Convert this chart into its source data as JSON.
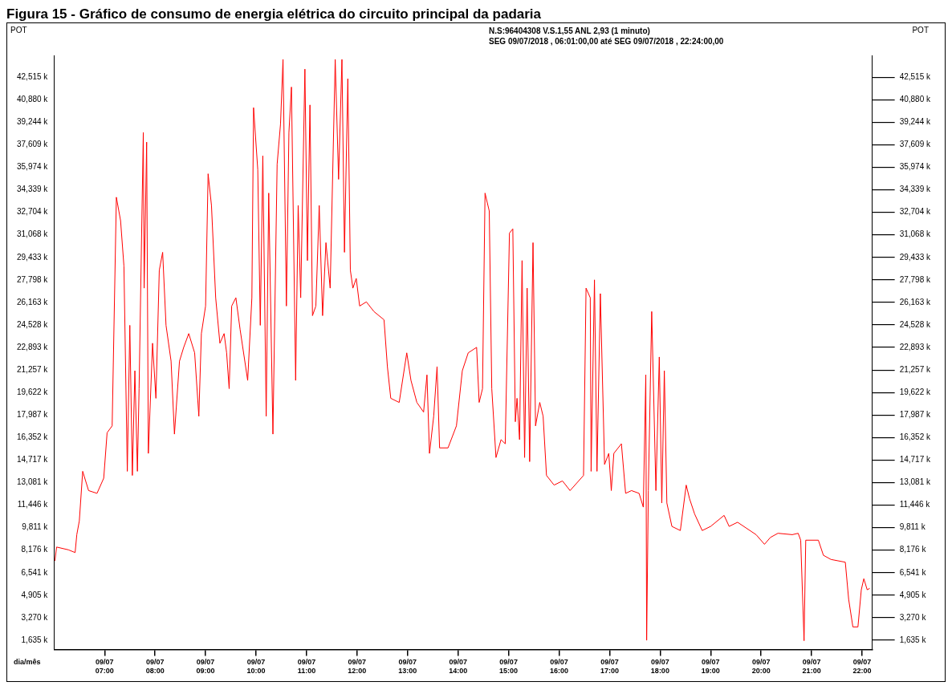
{
  "chart_data": {
    "type": "line",
    "title": "Figura 15 - Gráfico de consumo de energia elétrica do circuito principal da padaria",
    "subtitle": "N.S:96404308  V.S.1,55 ANL 2,93 (1 minuto)",
    "annotations": [
      "SEG 09/07/2018 , 06:01:00,00 até SEG 09/07/2018 , 22:24:00,00"
    ],
    "xlabel": "dia/mês",
    "ylabel": "POT",
    "y2label": "POT",
    "xlim": [
      "2018-07-09T06:00",
      "2018-07-09T22:12"
    ],
    "xticks": [
      {
        "value": "2018-07-09T07:00",
        "label": "09/07 07:00"
      },
      {
        "value": "2018-07-09T08:00",
        "label": "09/07 08:00"
      },
      {
        "value": "2018-07-09T09:00",
        "label": "09/07 09:00"
      },
      {
        "value": "2018-07-09T10:00",
        "label": "09/07 10:00"
      },
      {
        "value": "2018-07-09T11:00",
        "label": "09/07 11:00"
      },
      {
        "value": "2018-07-09T12:00",
        "label": "09/07 12:00"
      },
      {
        "value": "2018-07-09T13:00",
        "label": "09/07 13:00"
      },
      {
        "value": "2018-07-09T14:00",
        "label": "09/07 14:00"
      },
      {
        "value": "2018-07-09T15:00",
        "label": "09/07 15:00"
      },
      {
        "value": "2018-07-09T16:00",
        "label": "09/07 16:00"
      },
      {
        "value": "2018-07-09T17:00",
        "label": "09/07 17:00"
      },
      {
        "value": "2018-07-09T18:00",
        "label": "09/07 18:00"
      },
      {
        "value": "2018-07-09T19:00",
        "label": "09/07 19:00"
      },
      {
        "value": "2018-07-09T20:00",
        "label": "09/07 20:00"
      },
      {
        "value": "2018-07-09T21:00",
        "label": "09/07 21:00"
      },
      {
        "value": "2018-07-09T22:00",
        "label": "09/07 22:00"
      }
    ],
    "ylim": [
      0.97,
      44.1
    ],
    "yticks": [
      {
        "value": 1.635,
        "label": "1,635 k"
      },
      {
        "value": 3.27,
        "label": "3,270 k"
      },
      {
        "value": 4.905,
        "label": "4,905 k"
      },
      {
        "value": 6.541,
        "label": "6,541 k"
      },
      {
        "value": 8.176,
        "label": "8,176 k"
      },
      {
        "value": 9.811,
        "label": "9,811 k"
      },
      {
        "value": 11.446,
        "label": "11,446 k"
      },
      {
        "value": 13.081,
        "label": "13,081 k"
      },
      {
        "value": 14.717,
        "label": "14,717 k"
      },
      {
        "value": 16.352,
        "label": "16,352 k"
      },
      {
        "value": 17.987,
        "label": "17,987 k"
      },
      {
        "value": 19.622,
        "label": "19,622 k"
      },
      {
        "value": 21.257,
        "label": "21,257 k"
      },
      {
        "value": 22.893,
        "label": "22,893 k"
      },
      {
        "value": 24.528,
        "label": "24,528 k"
      },
      {
        "value": 26.163,
        "label": "26,163 k"
      },
      {
        "value": 27.798,
        "label": "27,798 k"
      },
      {
        "value": 29.433,
        "label": "29,433 k"
      },
      {
        "value": 31.068,
        "label": "31,068 k"
      },
      {
        "value": 32.704,
        "label": "32,704 k"
      },
      {
        "value": 34.339,
        "label": "34,339 k"
      },
      {
        "value": 35.974,
        "label": "35,974 k"
      },
      {
        "value": 37.609,
        "label": "37,609 k"
      },
      {
        "value": 39.244,
        "label": "39,244 k"
      },
      {
        "value": 40.88,
        "label": "40,880 k"
      },
      {
        "value": 42.515,
        "label": "42,515 k"
      }
    ],
    "y2lim": [
      0.97,
      44.1
    ],
    "y2ticks": [
      {
        "value": 1.635,
        "label": "1,635 k"
      },
      {
        "value": 3.27,
        "label": "3,270 k"
      },
      {
        "value": 4.905,
        "label": "4,905 k"
      },
      {
        "value": 6.541,
        "label": "6,541 k"
      },
      {
        "value": 8.176,
        "label": "8,176 k"
      },
      {
        "value": 9.811,
        "label": "9,811 k"
      },
      {
        "value": 11.446,
        "label": "11,446 k"
      },
      {
        "value": 13.081,
        "label": "13,081 k"
      },
      {
        "value": 14.717,
        "label": "14,717 k"
      },
      {
        "value": 16.352,
        "label": "16,352 k"
      },
      {
        "value": 17.987,
        "label": "17,987 k"
      },
      {
        "value": 19.622,
        "label": "19,622 k"
      },
      {
        "value": 21.257,
        "label": "21,257 k"
      },
      {
        "value": 22.893,
        "label": "22,893 k"
      },
      {
        "value": 24.528,
        "label": "24,528 k"
      },
      {
        "value": 26.163,
        "label": "26,163 k"
      },
      {
        "value": 27.798,
        "label": "27,798 k"
      },
      {
        "value": 29.433,
        "label": "29,433 k"
      },
      {
        "value": 31.068,
        "label": "31,068 k"
      },
      {
        "value": 32.704,
        "label": "32,704 k"
      },
      {
        "value": 34.339,
        "label": "34,339 k"
      },
      {
        "value": 35.974,
        "label": "35,974 k"
      },
      {
        "value": 37.609,
        "label": "37,609 k"
      },
      {
        "value": 39.244,
        "label": "39,244 k"
      },
      {
        "value": 40.88,
        "label": "40,880 k"
      },
      {
        "value": 42.515,
        "label": "42,515 k"
      }
    ],
    "grid": false,
    "legend": false,
    "marker": "none",
    "line_style": "solid",
    "series": [
      {
        "color": "#ff0000",
        "x": [
          "2018-07-09T06:01",
          "2018-07-09T06:03",
          "2018-07-09T06:17",
          "2018-07-09T06:25",
          "2018-07-09T06:27",
          "2018-07-09T06:30",
          "2018-07-09T06:34",
          "2018-07-09T06:41",
          "2018-07-09T06:51",
          "2018-07-09T06:59",
          "2018-07-09T07:03",
          "2018-07-09T07:09",
          "2018-07-09T07:14",
          "2018-07-09T07:19",
          "2018-07-09T07:23",
          "2018-07-09T07:27",
          "2018-07-09T07:30",
          "2018-07-09T07:33",
          "2018-07-09T07:36",
          "2018-07-09T07:39",
          "2018-07-09T07:41",
          "2018-07-09T07:46",
          "2018-07-09T07:47",
          "2018-07-09T07:50",
          "2018-07-09T07:52",
          "2018-07-09T07:57",
          "2018-07-09T08:01",
          "2018-07-09T08:05",
          "2018-07-09T08:09",
          "2018-07-09T08:13",
          "2018-07-09T08:19",
          "2018-07-09T08:23",
          "2018-07-09T08:29",
          "2018-07-09T08:34",
          "2018-07-09T08:40",
          "2018-07-09T08:47",
          "2018-07-09T08:52",
          "2018-07-09T08:55",
          "2018-07-09T09:00",
          "2018-07-09T09:03",
          "2018-07-09T09:07",
          "2018-07-09T09:12",
          "2018-07-09T09:17",
          "2018-07-09T09:22",
          "2018-07-09T09:25",
          "2018-07-09T09:28",
          "2018-07-09T09:31",
          "2018-07-09T09:36",
          "2018-07-09T09:41",
          "2018-07-09T09:50",
          "2018-07-09T09:55",
          "2018-07-09T09:57",
          "2018-07-09T10:02",
          "2018-07-09T10:05",
          "2018-07-09T10:08",
          "2018-07-09T10:12",
          "2018-07-09T10:15",
          "2018-07-09T10:20",
          "2018-07-09T10:25",
          "2018-07-09T10:29",
          "2018-07-09T10:32",
          "2018-07-09T10:36",
          "2018-07-09T10:39",
          "2018-07-09T10:42",
          "2018-07-09T10:47",
          "2018-07-09T10:50",
          "2018-07-09T10:53",
          "2018-07-09T10:58",
          "2018-07-09T11:01",
          "2018-07-09T11:04",
          "2018-07-09T11:07",
          "2018-07-09T11:11",
          "2018-07-09T11:15",
          "2018-07-09T11:19",
          "2018-07-09T11:23",
          "2018-07-09T11:28",
          "2018-07-09T11:34",
          "2018-07-09T11:38",
          "2018-07-09T11:42",
          "2018-07-09T11:45",
          "2018-07-09T11:49",
          "2018-07-09T11:52",
          "2018-07-09T11:55",
          "2018-07-09T11:59",
          "2018-07-09T12:03",
          "2018-07-09T12:11",
          "2018-07-09T12:20",
          "2018-07-09T12:32",
          "2018-07-09T12:36",
          "2018-07-09T12:40",
          "2018-07-09T12:50",
          "2018-07-09T12:59",
          "2018-07-09T13:04",
          "2018-07-09T13:11",
          "2018-07-09T13:19",
          "2018-07-09T13:23",
          "2018-07-09T13:26",
          "2018-07-09T13:31",
          "2018-07-09T13:35",
          "2018-07-09T13:38",
          "2018-07-09T13:48",
          "2018-07-09T13:58",
          "2018-07-09T14:05",
          "2018-07-09T14:12",
          "2018-07-09T14:22",
          "2018-07-09T14:25",
          "2018-07-09T14:29",
          "2018-07-09T14:32",
          "2018-07-09T14:37",
          "2018-07-09T14:40",
          "2018-07-09T14:45",
          "2018-07-09T14:51",
          "2018-07-09T14:56",
          "2018-07-09T15:01",
          "2018-07-09T15:05",
          "2018-07-09T15:08",
          "2018-07-09T15:10",
          "2018-07-09T15:13",
          "2018-07-09T15:16",
          "2018-07-09T15:19",
          "2018-07-09T15:22",
          "2018-07-09T15:25",
          "2018-07-09T15:29",
          "2018-07-09T15:32",
          "2018-07-09T15:37",
          "2018-07-09T15:41",
          "2018-07-09T15:45",
          "2018-07-09T15:54",
          "2018-07-09T16:04",
          "2018-07-09T16:13",
          "2018-07-09T16:29",
          "2018-07-09T16:32",
          "2018-07-09T16:37",
          "2018-07-09T16:38",
          "2018-07-09T16:42",
          "2018-07-09T16:45",
          "2018-07-09T16:49",
          "2018-07-09T16:54",
          "2018-07-09T16:59",
          "2018-07-09T17:02",
          "2018-07-09T17:05",
          "2018-07-09T17:14",
          "2018-07-09T17:19",
          "2018-07-09T17:26",
          "2018-07-09T17:35",
          "2018-07-09T17:40",
          "2018-07-09T17:43",
          "2018-07-09T17:44",
          "2018-07-09T17:46",
          "2018-07-09T17:50",
          "2018-07-09T17:55",
          "2018-07-09T17:59",
          "2018-07-09T18:02",
          "2018-07-09T18:05",
          "2018-07-09T18:08",
          "2018-07-09T18:14",
          "2018-07-09T18:24",
          "2018-07-09T18:31",
          "2018-07-09T18:35",
          "2018-07-09T18:41",
          "2018-07-09T18:50",
          "2018-07-09T19:00",
          "2018-07-09T19:16",
          "2018-07-09T19:22",
          "2018-07-09T19:32",
          "2018-07-09T19:54",
          "2018-07-09T20:04",
          "2018-07-09T20:11",
          "2018-07-09T20:20",
          "2018-07-09T20:37",
          "2018-07-09T20:44",
          "2018-07-09T20:47",
          "2018-07-09T20:51",
          "2018-07-09T20:53",
          "2018-07-09T21:08",
          "2018-07-09T21:14",
          "2018-07-09T21:23",
          "2018-07-09T21:40",
          "2018-07-09T21:44",
          "2018-07-09T21:49",
          "2018-07-09T21:55",
          "2018-07-09T21:59",
          "2018-07-09T22:02",
          "2018-07-09T22:06",
          "2018-07-09T22:09"
        ],
        "values": [
          7.4,
          8.4,
          8.2,
          8.0,
          9.3,
          10.3,
          13.9,
          12.5,
          12.3,
          13.4,
          16.7,
          17.2,
          33.8,
          32.1,
          28.8,
          13.9,
          24.5,
          13.6,
          21.2,
          13.9,
          19.9,
          38.5,
          27.2,
          37.8,
          15.2,
          23.2,
          19.2,
          28.5,
          29.8,
          24.5,
          21.9,
          16.6,
          21.9,
          22.9,
          23.9,
          22.5,
          17.9,
          23.9,
          25.9,
          35.5,
          33.2,
          26.5,
          23.2,
          23.9,
          22.5,
          19.9,
          25.9,
          26.5,
          24.2,
          20.5,
          26.5,
          40.3,
          35.8,
          24.5,
          36.8,
          17.9,
          34.1,
          16.6,
          36.2,
          39.1,
          43.8,
          25.9,
          38.5,
          41.8,
          20.5,
          33.2,
          26.5,
          43.1,
          29.2,
          40.5,
          25.2,
          25.9,
          33.2,
          25.2,
          30.5,
          27.2,
          43.8,
          35.1,
          43.8,
          29.8,
          42.4,
          28.5,
          27.2,
          27.9,
          25.9,
          26.2,
          25.5,
          24.9,
          21.5,
          19.2,
          18.9,
          22.5,
          20.5,
          18.9,
          18.2,
          20.9,
          15.2,
          17.9,
          21.5,
          15.6,
          15.6,
          17.2,
          21.2,
          22.5,
          22.9,
          18.9,
          19.9,
          34.1,
          32.8,
          19.9,
          14.9,
          16.2,
          15.9,
          31.2,
          31.5,
          17.5,
          19.2,
          16.2,
          29.2,
          14.9,
          27.2,
          14.6,
          30.5,
          17.2,
          18.9,
          17.9,
          13.6,
          12.9,
          13.2,
          12.5,
          13.6,
          27.2,
          26.5,
          13.9,
          27.8,
          13.9,
          26.8,
          14.4,
          15.2,
          12.5,
          15.2,
          15.9,
          12.3,
          12.5,
          12.3,
          11.3,
          20.9,
          1.63,
          12.5,
          25.5,
          12.5,
          22.2,
          11.6,
          21.2,
          11.6,
          9.9,
          9.6,
          12.9,
          11.9,
          10.8,
          9.6,
          9.9,
          10.7,
          9.9,
          10.2,
          9.3,
          8.6,
          9.1,
          9.4,
          9.3,
          9.4,
          8.9,
          1.6,
          8.9,
          8.9,
          7.8,
          7.5,
          7.3,
          4.6,
          2.6,
          2.6,
          5.3,
          6.1,
          5.3,
          5.4
        ]
      }
    ]
  }
}
